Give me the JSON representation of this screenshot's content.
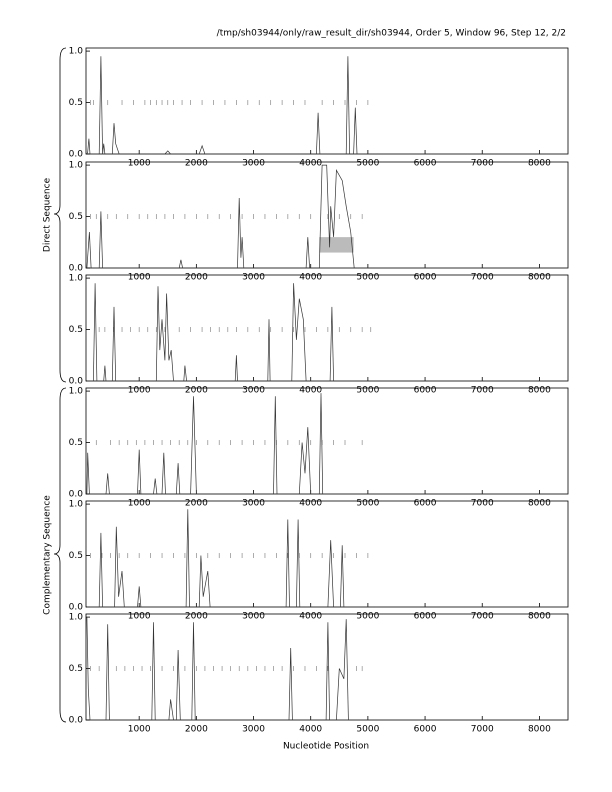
{
  "header": "/tmp/sh03944/only/raw_result_dir/sh03944, Order 5, Window 96, Step 12, 2/2",
  "xlabel": "Nucleotide Position",
  "groups": [
    "Direct Sequence",
    "Complementary Sequence"
  ],
  "chart_data": [
    {
      "type": "line",
      "color": "#333333",
      "marker_color": "#888888",
      "xlim": [
        70,
        8500
      ],
      "ylim": [
        0,
        1.03
      ],
      "xticks": [
        1000,
        2000,
        3000,
        4000,
        5000,
        6000,
        7000,
        8000
      ],
      "yticks": [
        {
          "value": 0,
          "label": "0.0"
        },
        {
          "value": 0.5,
          "label": "0.5"
        },
        {
          "value": 1,
          "label": "1.0"
        }
      ],
      "x": [
        86,
        100,
        120,
        140,
        300,
        330,
        360,
        380,
        400,
        530,
        560,
        590,
        620,
        650,
        1450,
        1500,
        1550,
        2050,
        2100,
        2150,
        4100,
        4130,
        4160,
        4620,
        4650,
        4680,
        4750,
        4780,
        4810,
        5000,
        8500
      ],
      "values": [
        0,
        0.02,
        0.15,
        0,
        0,
        0.95,
        0,
        0.1,
        0,
        0,
        0.3,
        0.1,
        0.05,
        0,
        0,
        0.03,
        0,
        0,
        0.08,
        0,
        0,
        0.4,
        0,
        0,
        0.95,
        0,
        0,
        0.45,
        0,
        0,
        0
      ],
      "marker_y": 0.5,
      "markers": [
        150,
        200,
        450,
        700,
        900,
        1100,
        1200,
        1300,
        1400,
        1500,
        1600,
        1750,
        1900,
        2100,
        2300,
        2500,
        2700,
        2900,
        3100,
        3300,
        3500,
        3700,
        3900,
        4200,
        4400,
        4600,
        4800,
        5000
      ]
    },
    {
      "type": "line",
      "color": "#333333",
      "marker_color": "#888888",
      "xlim": [
        70,
        8500
      ],
      "ylim": [
        0,
        1.03
      ],
      "xticks": [
        1000,
        2000,
        3000,
        4000,
        5000,
        6000,
        7000,
        8000
      ],
      "yticks": [
        {
          "value": 0,
          "label": "0.0"
        },
        {
          "value": 0.5,
          "label": "0.5"
        },
        {
          "value": 1,
          "label": "1.0"
        }
      ],
      "x": [
        86,
        130,
        160,
        300,
        330,
        360,
        1700,
        1730,
        1760,
        2720,
        2750,
        2780,
        2800,
        2830,
        3920,
        3950,
        3980,
        4150,
        4200,
        4280,
        4330,
        4350,
        4400,
        4450,
        4550,
        4620,
        4700,
        4760,
        8500
      ],
      "values": [
        0,
        0.35,
        0,
        0,
        0.55,
        0,
        0,
        0.08,
        0,
        0,
        0.68,
        0.1,
        0.3,
        0,
        0,
        0.3,
        0,
        0,
        1.0,
        1.0,
        0.2,
        0.6,
        0.3,
        0.95,
        0.85,
        0.6,
        0.35,
        0,
        0
      ],
      "highlight": {
        "x": [
          4150,
          4750
        ],
        "y": [
          0.15,
          0.3
        ]
      },
      "marker_y": 0.5,
      "markers": [
        150,
        250,
        450,
        600,
        800,
        1000,
        1150,
        1300,
        1450,
        1600,
        1800,
        2000,
        2200,
        2400,
        2600,
        2800,
        3000,
        3200,
        3400,
        3600,
        3800,
        4000,
        4300,
        4500,
        4700,
        4900
      ]
    },
    {
      "type": "line",
      "color": "#333333",
      "marker_color": "#888888",
      "xlim": [
        70,
        8500
      ],
      "ylim": [
        0,
        1.03
      ],
      "xticks": [
        1000,
        2000,
        3000,
        4000,
        5000,
        6000,
        7000,
        8000
      ],
      "yticks": [
        {
          "value": 0,
          "label": "0.0"
        },
        {
          "value": 0.5,
          "label": "0.5"
        },
        {
          "value": 1,
          "label": "1.0"
        }
      ],
      "x": [
        86,
        200,
        230,
        260,
        380,
        400,
        420,
        530,
        560,
        590,
        1300,
        1330,
        1360,
        1400,
        1450,
        1480,
        1520,
        1560,
        1600,
        1780,
        1800,
        1830,
        2680,
        2700,
        2720,
        3250,
        3270,
        3290,
        3670,
        3700,
        3750,
        3800,
        3870,
        3920,
        4340,
        4370,
        4400,
        8500
      ],
      "values": [
        0,
        0,
        0.95,
        0,
        0,
        0.15,
        0,
        0,
        0.72,
        0,
        0,
        0.92,
        0.3,
        0.6,
        0.2,
        0.85,
        0.2,
        0.3,
        0,
        0,
        0.15,
        0,
        0,
        0.25,
        0,
        0,
        0.6,
        0,
        0,
        0.95,
        0.4,
        0.8,
        0.6,
        0,
        0,
        0.72,
        0,
        0
      ],
      "marker_y": 0.5,
      "markers": [
        300,
        400,
        550,
        700,
        850,
        1000,
        1150,
        1300,
        1450,
        1700,
        1900,
        2100,
        2250,
        2400,
        2550,
        2700,
        2900,
        3100,
        3300,
        3500,
        3700,
        3900,
        4100,
        4300,
        4500,
        4700,
        4900,
        5050
      ]
    },
    {
      "type": "line",
      "color": "#333333",
      "marker_color": "#888888",
      "xlim": [
        70,
        8500
      ],
      "ylim": [
        0,
        1.03
      ],
      "xticks": [
        1000,
        2000,
        3000,
        4000,
        5000,
        6000,
        7000,
        8000
      ],
      "yticks": [
        {
          "value": 0,
          "label": "0.0"
        },
        {
          "value": 0.5,
          "label": "0.5"
        },
        {
          "value": 1,
          "label": "1.0"
        }
      ],
      "x": [
        86,
        100,
        130,
        420,
        450,
        480,
        970,
        1000,
        1030,
        1250,
        1280,
        1310,
        1400,
        1430,
        1460,
        1650,
        1680,
        1710,
        1900,
        1950,
        2000,
        3350,
        3380,
        3410,
        3800,
        3850,
        3900,
        3950,
        4000,
        4150,
        4180,
        4210,
        8500
      ],
      "values": [
        0,
        0.4,
        0,
        0,
        0.2,
        0,
        0,
        0.43,
        0,
        0,
        0.15,
        0,
        0,
        0.4,
        0,
        0,
        0.3,
        0,
        0,
        0.95,
        0,
        0,
        0.95,
        0,
        0,
        0.5,
        0.2,
        0.65,
        0,
        0,
        0.98,
        0,
        0
      ],
      "marker_y": 0.5,
      "markers": [
        250,
        500,
        650,
        800,
        950,
        1100,
        1250,
        1400,
        1550,
        1700,
        1850,
        2000,
        2200,
        2400,
        2600,
        2800,
        3000,
        3200,
        3400,
        3600,
        3800,
        4000,
        4200,
        4400,
        4600,
        4900
      ]
    },
    {
      "type": "line",
      "color": "#333333",
      "marker_color": "#888888",
      "xlim": [
        70,
        8500
      ],
      "ylim": [
        0,
        1.03
      ],
      "xticks": [
        1000,
        2000,
        3000,
        4000,
        5000,
        6000,
        7000,
        8000
      ],
      "yticks": [
        {
          "value": 0,
          "label": "0.0"
        },
        {
          "value": 0.5,
          "label": "0.5"
        },
        {
          "value": 1,
          "label": "1.0"
        }
      ],
      "x": [
        86,
        300,
        330,
        360,
        570,
        600,
        640,
        700,
        740,
        970,
        1000,
        1030,
        1820,
        1850,
        1880,
        2050,
        2080,
        2120,
        2200,
        2240,
        3570,
        3600,
        3630,
        3750,
        3780,
        3810,
        4300,
        4350,
        4400,
        4520,
        4550,
        4580,
        8500
      ],
      "values": [
        0,
        0,
        0.72,
        0,
        0,
        0.78,
        0.1,
        0.35,
        0,
        0,
        0.2,
        0,
        0,
        0.95,
        0,
        0,
        0.5,
        0.1,
        0.35,
        0,
        0,
        0.85,
        0,
        0,
        0.85,
        0,
        0,
        0.65,
        0,
        0,
        0.6,
        0,
        0
      ],
      "marker_y": 0.5,
      "markers": [
        150,
        350,
        500,
        650,
        800,
        1000,
        1200,
        1400,
        1600,
        1800,
        2000,
        2200,
        2400,
        2600,
        2800,
        3000,
        3200,
        3400,
        3600,
        3800,
        4000,
        4200,
        4400,
        4600,
        4800,
        5000
      ]
    },
    {
      "type": "line",
      "color": "#333333",
      "marker_color": "#888888",
      "xlim": [
        70,
        8500
      ],
      "ylim": [
        0,
        1.03
      ],
      "xticks": [
        1000,
        2000,
        3000,
        4000,
        5000,
        6000,
        7000,
        8000
      ],
      "yticks": [
        {
          "value": 0,
          "label": "0.0"
        },
        {
          "value": 0.5,
          "label": "0.5"
        },
        {
          "value": 1,
          "label": "1.0"
        }
      ],
      "x": [
        86,
        110,
        140,
        420,
        450,
        480,
        1220,
        1250,
        1280,
        1520,
        1550,
        1600,
        1650,
        1680,
        1720,
        1920,
        1950,
        1980,
        3620,
        3650,
        3680,
        4270,
        4300,
        4330,
        4450,
        4500,
        4580,
        4620,
        4660,
        8500
      ],
      "values": [
        1.0,
        0.3,
        0,
        0,
        0.93,
        0,
        0,
        0.95,
        0,
        0,
        0.2,
        0,
        0,
        0.68,
        0,
        0,
        0.95,
        0,
        0,
        0.7,
        0,
        0,
        0.95,
        0,
        0,
        0.5,
        0.4,
        0.98,
        0,
        0
      ],
      "marker_y": 0.5,
      "markers": [
        150,
        300,
        600,
        750,
        900,
        1050,
        1200,
        1400,
        1600,
        1800,
        2000,
        2150,
        2300,
        2450,
        2600,
        2750,
        2900,
        3050,
        3200,
        3350,
        3500,
        3700,
        3900,
        4100,
        4300,
        4800,
        4900
      ]
    }
  ]
}
